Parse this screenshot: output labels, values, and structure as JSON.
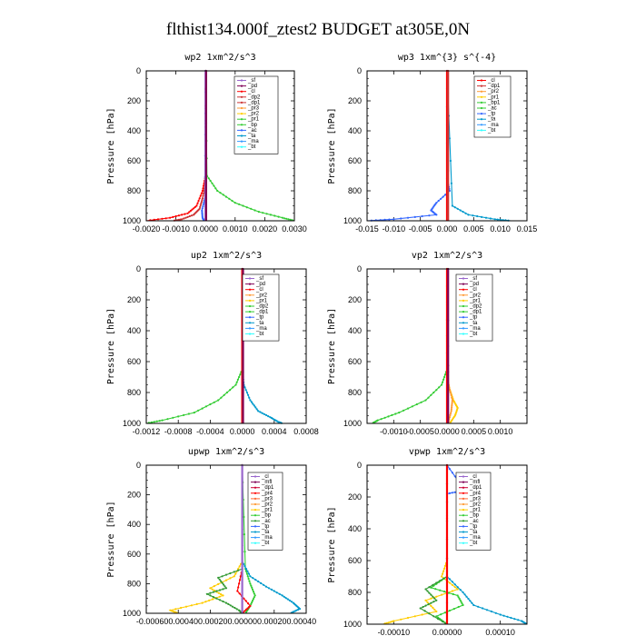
{
  "figure_title": "flthist134.000f_ztest2  BUDGET at305E,0N",
  "chart_data": [
    {
      "type": "line",
      "title": "wp2   1xm^2/s^3",
      "ylabel": "Pressure [hPa]",
      "xlim": [
        -0.002,
        0.003
      ],
      "ylim": [
        1000,
        0
      ],
      "xticks": [
        "-0.0020",
        "-0.0010",
        "0.0000",
        "0.0010",
        "0.0020",
        "0.0030"
      ],
      "yticks": [
        "0",
        "200",
        "400",
        "600",
        "800",
        "1000"
      ],
      "legend_position": "top-right",
      "series": [
        {
          "name": "_sf",
          "color": "#9966cc"
        },
        {
          "name": "_pd",
          "color": "#7f0055"
        },
        {
          "name": "_cl",
          "color": "#ff0000"
        },
        {
          "name": "_dp2",
          "color": "#cc3333"
        },
        {
          "name": "_dp1",
          "color": "#cc3333"
        },
        {
          "name": "_pr3",
          "color": "#ff9933"
        },
        {
          "name": "_pr2",
          "color": "#ffcc00"
        },
        {
          "name": "_pr1",
          "color": "#33cc33"
        },
        {
          "name": "_bp",
          "color": "#33cc33"
        },
        {
          "name": "_ac",
          "color": "#3366ff"
        },
        {
          "name": "_ta",
          "color": "#0099cc"
        },
        {
          "name": "_ma",
          "color": "#3399ff"
        },
        {
          "name": "_bt",
          "color": "#33ffff"
        }
      ],
      "curves": [
        {
          "color": "#ff0000",
          "p": [
            0,
            700,
            800,
            900,
            950,
            980,
            1000
          ],
          "x": [
            0,
            0,
            -0.0001,
            -0.0003,
            -0.0006,
            -0.0012,
            -0.002
          ]
        },
        {
          "color": "#cc3333",
          "p": [
            0,
            750,
            850,
            920,
            960,
            990,
            1000
          ],
          "x": [
            0,
            0,
            -0.0001,
            -0.0002,
            -0.0004,
            -0.0008,
            -0.0011
          ]
        },
        {
          "color": "#33cc33",
          "p": [
            0,
            700,
            800,
            880,
            940,
            980,
            1000
          ],
          "x": [
            0,
            5e-05,
            0.0004,
            0.001,
            0.0018,
            0.0026,
            0.003
          ]
        },
        {
          "color": "#3366ff",
          "p": [
            0,
            850,
            930,
            980,
            1000
          ],
          "x": [
            0,
            -2e-05,
            -0.00012,
            -0.0001,
            -5e-05
          ]
        },
        {
          "color": "#9966cc",
          "p": [
            0,
            1000
          ],
          "x": [
            0,
            0
          ]
        },
        {
          "color": "#7f0055",
          "p": [
            0,
            1000
          ],
          "x": [
            2e-05,
            2e-05
          ]
        }
      ]
    },
    {
      "type": "line",
      "title": "wp3   1xm^{3} s^{-4}",
      "ylabel": "Pressure [hPa]",
      "xlim": [
        -0.015,
        0.015
      ],
      "ylim": [
        1000,
        0
      ],
      "xticks": [
        "-0.015",
        "-0.010",
        "-0.005",
        "0.000",
        "0.005",
        "0.010",
        "0.015"
      ],
      "yticks": [
        "0",
        "200",
        "400",
        "600",
        "800",
        "1000"
      ],
      "legend_position": "top-right",
      "series": [
        {
          "name": "_cl",
          "color": "#ff0000"
        },
        {
          "name": "_dp1",
          "color": "#cc3333"
        },
        {
          "name": "_pr2",
          "color": "#ff9933"
        },
        {
          "name": "_pr1",
          "color": "#ffcc00"
        },
        {
          "name": "_bp1",
          "color": "#33cc33"
        },
        {
          "name": "_ac",
          "color": "#33cc33"
        },
        {
          "name": "_tp",
          "color": "#3366ff"
        },
        {
          "name": "_ta",
          "color": "#0099cc"
        },
        {
          "name": "_ma",
          "color": "#3399ff"
        },
        {
          "name": "_bt",
          "color": "#33ffff"
        }
      ],
      "curves": [
        {
          "color": "#3366ff",
          "p": [
            0,
            720,
            800,
            880,
            930,
            960,
            990,
            1000
          ],
          "x": [
            0,
            0,
            0.0005,
            -0.002,
            -0.003,
            -0.002,
            -0.01,
            -0.015
          ]
        },
        {
          "color": "#0099cc",
          "p": [
            0,
            900,
            960,
            990,
            1000
          ],
          "x": [
            0,
            0.001,
            0.004,
            0.009,
            0.012
          ]
        },
        {
          "color": "#ff0000",
          "p": [
            0,
            1000
          ],
          "x": [
            0,
            0
          ]
        },
        {
          "color": "#cc3333",
          "p": [
            0,
            1000
          ],
          "x": [
            0.0002,
            0.0002
          ]
        }
      ]
    },
    {
      "type": "line",
      "title": "up2   1xm^2/s^3",
      "ylabel": "Pressure [hPa]",
      "xlim": [
        -0.0012,
        0.0008
      ],
      "ylim": [
        1000,
        0
      ],
      "xticks": [
        "-0.0012",
        "-0.0008",
        "-0.0004",
        "0.0000",
        "0.0004",
        "0.0008"
      ],
      "yticks": [
        "0",
        "200",
        "400",
        "600",
        "800",
        "1000"
      ],
      "legend_position": "top-right",
      "series": [
        {
          "name": "_sf",
          "color": "#9966cc"
        },
        {
          "name": "_pd",
          "color": "#7f0055"
        },
        {
          "name": "_cl",
          "color": "#ff0000"
        },
        {
          "name": "_pr2",
          "color": "#ff9933"
        },
        {
          "name": "_pr1",
          "color": "#ffcc00"
        },
        {
          "name": "_dp2",
          "color": "#33cc33"
        },
        {
          "name": "_dp1",
          "color": "#33cc33"
        },
        {
          "name": "_tp",
          "color": "#3366ff"
        },
        {
          "name": "_ta",
          "color": "#0099cc"
        },
        {
          "name": "_ma",
          "color": "#3399ff"
        },
        {
          "name": "_bt",
          "color": "#33ffff"
        }
      ],
      "curves": [
        {
          "color": "#33cc33",
          "p": [
            0,
            650,
            750,
            850,
            930,
            980,
            1000
          ],
          "x": [
            0,
            0,
            -8e-05,
            -0.0003,
            -0.0006,
            -0.001,
            -0.0012
          ]
        },
        {
          "color": "#0099cc",
          "p": [
            0,
            650,
            750,
            850,
            920,
            960,
            990,
            1000
          ],
          "x": [
            0,
            0,
            2e-05,
            0.0001,
            0.0002,
            0.00035,
            0.00045,
            0.0005
          ]
        },
        {
          "color": "#ff0000",
          "p": [
            0,
            1000
          ],
          "x": [
            0,
            0
          ]
        },
        {
          "color": "#7f0055",
          "p": [
            0,
            1000
          ],
          "x": [
            1e-05,
            1e-05
          ]
        }
      ]
    },
    {
      "type": "line",
      "title": "vp2   1xm^2/s^3",
      "ylabel": "Pressure [hPa]",
      "xlim": [
        -0.0015,
        0.0015
      ],
      "ylim": [
        1000,
        0
      ],
      "xticks": [
        "-0.0010",
        "-0.0005",
        "0.0000",
        "0.0005",
        "0.0010"
      ],
      "xtick_values": [
        -0.001,
        -0.0005,
        0,
        0.0005,
        0.001
      ],
      "yticks": [
        "0",
        "200",
        "400",
        "600",
        "800",
        "1000"
      ],
      "legend_position": "top-right",
      "series": [
        {
          "name": "_sf",
          "color": "#9966cc"
        },
        {
          "name": "_pd",
          "color": "#7f0055"
        },
        {
          "name": "_cl",
          "color": "#ff0000"
        },
        {
          "name": "_pr2",
          "color": "#ff9933"
        },
        {
          "name": "_pr1",
          "color": "#ffcc00"
        },
        {
          "name": "_dp2",
          "color": "#33cc33"
        },
        {
          "name": "_dp1",
          "color": "#33cc33"
        },
        {
          "name": "_tp",
          "color": "#3366ff"
        },
        {
          "name": "_ta",
          "color": "#0099cc"
        },
        {
          "name": "_ma",
          "color": "#3399ff"
        },
        {
          "name": "_bt",
          "color": "#33ffff"
        }
      ],
      "curves": [
        {
          "color": "#33cc33",
          "p": [
            0,
            650,
            750,
            850,
            930,
            980,
            1000
          ],
          "x": [
            0,
            0,
            -0.0001,
            -0.0004,
            -0.0009,
            -0.0013,
            -0.0014
          ]
        },
        {
          "color": "#ffcc00",
          "p": [
            0,
            700,
            780,
            850,
            900,
            950,
            1000
          ],
          "x": [
            0,
            0,
            5e-05,
            0.00012,
            0.0002,
            0.00015,
            5e-05
          ]
        },
        {
          "color": "#ff9933",
          "p": [
            0,
            750,
            850,
            920,
            1000
          ],
          "x": [
            0,
            3e-05,
            0.0001,
            8e-05,
            2e-05
          ]
        },
        {
          "color": "#ff0000",
          "p": [
            0,
            1000
          ],
          "x": [
            0,
            0
          ]
        },
        {
          "color": "#7f0055",
          "p": [
            0,
            1000
          ],
          "x": [
            2e-05,
            2e-05
          ]
        }
      ]
    },
    {
      "type": "line",
      "title": "upwp   1xm^2/s^3",
      "ylabel": "Pressure [hPa]",
      "xlim": [
        -0.0006,
        0.0004
      ],
      "ylim": [
        1000,
        0
      ],
      "xticks": [
        "-0.0006",
        "-0.0004",
        "-0.0002",
        "0.0000",
        "0.0002",
        "0.0004"
      ],
      "xtick_text": "-0.000600.000400.000200.000000.000200.00040",
      "yticks": [
        "0",
        "200",
        "400",
        "600",
        "800",
        "1000"
      ],
      "legend_position": "top-right",
      "series": [
        {
          "name": "_cl",
          "color": "#9966cc"
        },
        {
          "name": "_mfl",
          "color": "#7f0055"
        },
        {
          "name": "_dp1",
          "color": "#cc0033"
        },
        {
          "name": "_pr4",
          "color": "#ff0000"
        },
        {
          "name": "_pr3",
          "color": "#ff6633"
        },
        {
          "name": "_pr2",
          "color": "#ff9933"
        },
        {
          "name": "_pr1",
          "color": "#ffcc00"
        },
        {
          "name": "_bp",
          "color": "#33cc33"
        },
        {
          "name": "_ac",
          "color": "#339933"
        },
        {
          "name": "_tp",
          "color": "#3366ff"
        },
        {
          "name": "_ta",
          "color": "#0099cc"
        },
        {
          "name": "_ma",
          "color": "#3399ff"
        },
        {
          "name": "_bt",
          "color": "#33ffff"
        }
      ],
      "curves": [
        {
          "color": "#ffcc00",
          "p": [
            0,
            650,
            750,
            830,
            880,
            930,
            980,
            1000
          ],
          "x": [
            0,
            0,
            -5e-05,
            -0.0002,
            -0.00012,
            -0.00025,
            -0.00045,
            -0.0004
          ]
        },
        {
          "color": "#339933",
          "p": [
            0,
            700,
            760,
            830,
            870,
            930,
            980,
            1000
          ],
          "x": [
            0,
            0,
            -0.00015,
            -0.0001,
            -0.00022,
            -0.0001,
            -2e-05,
            0
          ]
        },
        {
          "color": "#33cc33",
          "p": [
            0,
            700,
            800,
            880,
            950,
            1000
          ],
          "x": [
            0,
            2e-05,
            5e-05,
            8e-05,
            5e-05,
            2e-05
          ]
        },
        {
          "color": "#0099cc",
          "p": [
            0,
            650,
            750,
            820,
            880,
            930,
            970,
            1000
          ],
          "x": [
            0,
            0,
            5e-05,
            0.00015,
            0.00025,
            0.00032,
            0.00036,
            0.0003
          ]
        },
        {
          "color": "#ff0000",
          "p": [
            0,
            700,
            850,
            950,
            1000
          ],
          "x": [
            0,
            0,
            -3e-05,
            5e-05,
            0
          ]
        },
        {
          "color": "#9966cc",
          "p": [
            0,
            1000
          ],
          "x": [
            0,
            0
          ]
        }
      ]
    },
    {
      "type": "line",
      "title": "vpwp   1xm^2/s^3",
      "ylabel": "Pressure [hPa]",
      "xlim": [
        -0.00015,
        0.00015
      ],
      "ylim": [
        1000,
        0
      ],
      "xticks": [
        "-0.00010",
        "0.00000",
        "0.00010"
      ],
      "xtick_values": [
        -0.0001,
        0,
        0.0001
      ],
      "yticks": [
        "0",
        "200",
        "400",
        "600",
        "800",
        "1000"
      ],
      "legend_position": "top-right",
      "series": [
        {
          "name": "_cl",
          "color": "#9966cc"
        },
        {
          "name": "_mfl",
          "color": "#7f0055"
        },
        {
          "name": "_dp1",
          "color": "#cc0033"
        },
        {
          "name": "_pr4",
          "color": "#ff0000"
        },
        {
          "name": "_pr3",
          "color": "#ff6633"
        },
        {
          "name": "_pr2",
          "color": "#ff9933"
        },
        {
          "name": "_pr1",
          "color": "#ffcc00"
        },
        {
          "name": "_bp",
          "color": "#33cc33"
        },
        {
          "name": "_ac",
          "color": "#339933"
        },
        {
          "name": "_tp",
          "color": "#3366ff"
        },
        {
          "name": "_ta",
          "color": "#0099cc"
        },
        {
          "name": "_ma",
          "color": "#3399ff"
        },
        {
          "name": "_bt",
          "color": "#33ffff"
        }
      ],
      "curves": [
        {
          "color": "#ffcc00",
          "p": [
            0,
            600,
            700,
            780,
            850,
            920,
            980,
            1000
          ],
          "x": [
            0,
            0,
            -1e-05,
            2e-05,
            -4e-05,
            -2e-05,
            -0.0001,
            -0.00012
          ]
        },
        {
          "color": "#33cc33",
          "p": [
            0,
            700,
            770,
            820,
            880,
            950,
            1000
          ],
          "x": [
            0,
            0,
            -3e-05,
            2e-05,
            3e-05,
            -2e-05,
            0
          ]
        },
        {
          "color": "#339933",
          "p": [
            0,
            700,
            780,
            850,
            900,
            1000
          ],
          "x": [
            0,
            0,
            -4e-05,
            -2e-05,
            -5e-05,
            0
          ]
        },
        {
          "color": "#0099cc",
          "p": [
            0,
            700,
            800,
            880,
            940,
            980,
            1000
          ],
          "x": [
            0,
            0,
            3e-05,
            5e-05,
            0.0001,
            0.00014,
            0.00015
          ]
        },
        {
          "color": "#3366ff",
          "p": [
            0,
            140,
            160,
            180,
            1000
          ],
          "x": [
            0,
            3e-05,
            3e-05,
            0,
            0
          ]
        },
        {
          "color": "#ff0000",
          "p": [
            0,
            1000
          ],
          "x": [
            0,
            0
          ]
        }
      ]
    }
  ]
}
